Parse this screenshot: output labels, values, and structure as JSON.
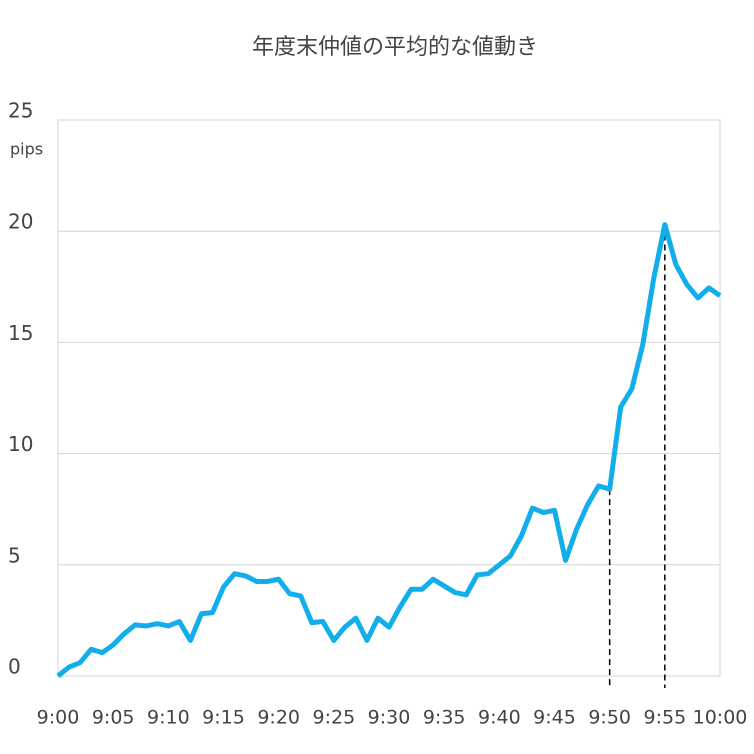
{
  "chart_data": {
    "type": "line",
    "title": "年度末仲値の平均的な値動き",
    "y_unit": "pips",
    "categories": [
      "9:00",
      null,
      null,
      null,
      null,
      "9:05",
      null,
      null,
      null,
      null,
      "9:10",
      null,
      null,
      null,
      null,
      "9:15",
      null,
      null,
      null,
      null,
      "9:20",
      null,
      null,
      null,
      null,
      "9:25",
      null,
      null,
      null,
      null,
      "9:30",
      null,
      null,
      null,
      null,
      "9:35",
      null,
      null,
      null,
      null,
      "9:40",
      null,
      null,
      null,
      null,
      "9:45",
      null,
      null,
      null,
      null,
      "9:50",
      null,
      null,
      null,
      null,
      "9:55",
      null,
      null,
      null,
      null,
      "10:00"
    ],
    "series": [
      {
        "color": "#12aeec",
        "values": [
          0,
          0.4,
          0.6,
          1.2,
          1.05,
          1.4,
          1.9,
          2.3,
          2.25,
          2.35,
          2.25,
          2.45,
          1.6,
          2.8,
          2.85,
          4.0,
          4.6,
          4.5,
          4.25,
          4.25,
          4.35,
          3.7,
          3.6,
          2.4,
          2.45,
          1.6,
          2.2,
          2.6,
          1.6,
          2.6,
          2.2,
          3.1,
          3.9,
          3.9,
          4.35,
          4.05,
          3.75,
          3.65,
          4.55,
          4.6,
          5.0,
          5.4,
          6.3,
          7.55,
          7.35,
          7.45,
          5.2,
          6.6,
          7.7,
          8.55,
          8.4,
          12.1,
          12.9,
          14.9,
          17.9,
          20.3,
          18.5,
          17.6,
          17.0,
          17.45,
          17.1
        ]
      }
    ],
    "droplines_at": [
      50,
      55
    ],
    "ylim": [
      0,
      25
    ],
    "yticks": [
      0,
      5,
      10,
      15,
      20,
      25
    ],
    "grid": true
  }
}
